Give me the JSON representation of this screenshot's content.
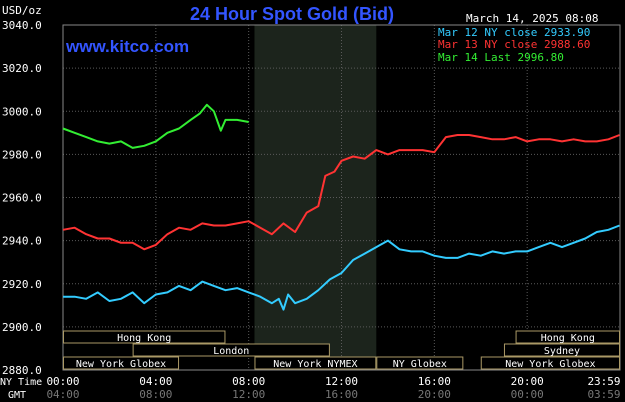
{
  "header": {
    "title": "24 Hour Spot Gold (Bid)",
    "y_unit": "USD/oz",
    "date": "March 14, 2025 08:08",
    "site": "www.kitco.com"
  },
  "legend": [
    {
      "label": "Mar 12 NY close 2933.90",
      "color": "#33ccff"
    },
    {
      "label": "Mar 13 NY close 2988.60",
      "color": "#ff3333"
    },
    {
      "label": "Mar 14 Last 2996.80",
      "color": "#33ee33"
    }
  ],
  "markets": {
    "rows": [
      [
        {
          "label": "Hong Kong",
          "from": 0.0,
          "to": 7.0
        },
        {
          "label": "Hong Kong",
          "from": 19.5,
          "to": 24.0
        }
      ],
      [
        {
          "label": "London",
          "from": 3.0,
          "to": 11.5
        },
        {
          "label": "Sydney",
          "from": 19.0,
          "to": 24.0
        }
      ],
      [
        {
          "label": "New York Globex",
          "from": 0.0,
          "to": 5.0
        },
        {
          "label": "New York NYMEX",
          "from": 8.25,
          "to": 13.5
        },
        {
          "label": "NY Globex",
          "from": 13.5,
          "to": 17.25
        },
        {
          "label": "New York Globex",
          "from": 18.0,
          "to": 24.0
        }
      ]
    ]
  },
  "bottom_axis": {
    "ny_label": "NY Time",
    "gmt_label": "GMT",
    "ny_ticks": [
      "00:00",
      "04:00",
      "08:00",
      "12:00",
      "16:00",
      "20:00",
      "23:59"
    ],
    "gmt_ticks": [
      "04:00",
      "08:00",
      "12:00",
      "16:00",
      "20:00",
      "00:00",
      "03:59"
    ]
  },
  "chart_data": {
    "type": "line",
    "title": "24 Hour Spot Gold (Bid)",
    "ylabel": "USD/oz",
    "xlabel": "NY Time",
    "xlim": [
      0,
      24
    ],
    "ylim": [
      2880,
      3040
    ],
    "yticks": [
      "3040.0",
      "3020.0",
      "3000.0",
      "2980.0",
      "2960.0",
      "2940.0",
      "2920.0",
      "2900.0",
      "2880.0"
    ],
    "x_ticks": [
      "00:00",
      "04:00",
      "08:00",
      "12:00",
      "16:00",
      "20:00",
      "23:59"
    ],
    "nymex_session": [
      8.25,
      13.5
    ],
    "grid": true,
    "legend_position": "top-right",
    "series": [
      {
        "name": "Mar 12 NY close 2933.90",
        "color": "#33ccff",
        "x": [
          0,
          0.5,
          1.0,
          1.5,
          2.0,
          2.5,
          3.0,
          3.5,
          4.0,
          4.5,
          5.0,
          5.5,
          6.0,
          6.5,
          7.0,
          7.5,
          8.0,
          8.5,
          9.0,
          9.3,
          9.5,
          9.7,
          10.0,
          10.5,
          11.0,
          11.5,
          12.0,
          12.5,
          13.0,
          13.5,
          14.0,
          14.5,
          15.0,
          15.5,
          16.0,
          16.5,
          17.0,
          17.5,
          18.0,
          18.5,
          19.0,
          19.5,
          20.0,
          20.5,
          21.0,
          21.5,
          22.0,
          22.5,
          23.0,
          23.5,
          23.98
        ],
        "y": [
          2914,
          2914,
          2913,
          2916,
          2912,
          2913,
          2916,
          2911,
          2915,
          2916,
          2919,
          2917,
          2921,
          2919,
          2917,
          2918,
          2916,
          2914,
          2911,
          2913,
          2908,
          2915,
          2911,
          2913,
          2917,
          2922,
          2925,
          2931,
          2934,
          2937,
          2940,
          2936,
          2935,
          2935,
          2933,
          2932,
          2932,
          2934,
          2933,
          2935,
          2934,
          2935,
          2935,
          2937,
          2939,
          2937,
          2939,
          2941,
          2944,
          2945,
          2947
        ]
      },
      {
        "name": "Mar 13 NY close 2988.60",
        "color": "#ff3333",
        "x": [
          0,
          0.5,
          1.0,
          1.5,
          2.0,
          2.5,
          3.0,
          3.5,
          4.0,
          4.5,
          5.0,
          5.5,
          6.0,
          6.5,
          7.0,
          7.5,
          8.0,
          8.5,
          9.0,
          9.5,
          10.0,
          10.5,
          11.0,
          11.3,
          11.7,
          12.0,
          12.5,
          13.0,
          13.5,
          14.0,
          14.5,
          15.0,
          15.5,
          16.0,
          16.5,
          17.0,
          17.5,
          18.0,
          18.5,
          19.0,
          19.5,
          20.0,
          20.5,
          21.0,
          21.5,
          22.0,
          22.5,
          23.0,
          23.5,
          23.98
        ],
        "y": [
          2945,
          2946,
          2943,
          2941,
          2941,
          2939,
          2939,
          2936,
          2938,
          2943,
          2946,
          2945,
          2948,
          2947,
          2947,
          2948,
          2949,
          2946,
          2943,
          2948,
          2944,
          2953,
          2956,
          2970,
          2972,
          2977,
          2979,
          2978,
          2982,
          2980,
          2982,
          2982,
          2982,
          2981,
          2988,
          2989,
          2989,
          2988,
          2987,
          2987,
          2988,
          2986,
          2987,
          2987,
          2986,
          2987,
          2986,
          2986,
          2987,
          2989
        ]
      },
      {
        "name": "Mar 14 Last 2996.80",
        "color": "#33ee33",
        "x": [
          0,
          0.5,
          1.0,
          1.5,
          2.0,
          2.5,
          3.0,
          3.5,
          4.0,
          4.5,
          5.0,
          5.5,
          5.9,
          6.2,
          6.5,
          6.8,
          7.0,
          7.5,
          8.0
        ],
        "y": [
          2992,
          2990,
          2988,
          2986,
          2985,
          2986,
          2983,
          2984,
          2986,
          2990,
          2992,
          2996,
          2999,
          3003,
          3000,
          2991,
          2996,
          2996,
          2995
        ]
      }
    ]
  }
}
